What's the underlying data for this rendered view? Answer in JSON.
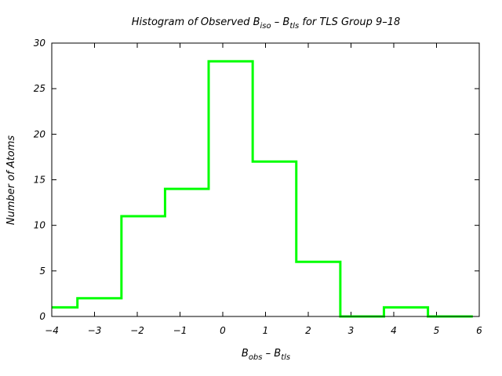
{
  "chart_data": {
    "type": "bar",
    "style": "step-histogram",
    "title": {
      "parts": [
        {
          "text": "Histogram of Observed B",
          "sub": false
        },
        {
          "text": "iso",
          "sub": true
        },
        {
          "text": " – B",
          "sub": false
        },
        {
          "text": "tls",
          "sub": true
        },
        {
          "text": " for TLS Group 9–18",
          "sub": false
        }
      ]
    },
    "xlabel": {
      "parts": [
        {
          "text": "B",
          "sub": false
        },
        {
          "text": "obs",
          "sub": true
        },
        {
          "text": " – B",
          "sub": false
        },
        {
          "text": "tls",
          "sub": true
        }
      ]
    },
    "ylabel": "Number of Atoms",
    "xlim": [
      -4,
      6
    ],
    "ylim": [
      0,
      30
    ],
    "xticks": [
      -4,
      -3,
      -2,
      -1,
      0,
      1,
      2,
      3,
      4,
      5,
      6
    ],
    "xtick_labels": [
      "−4",
      "−3",
      "−2",
      "−1",
      "0",
      "1",
      "2",
      "3",
      "4",
      "5",
      "6"
    ],
    "yticks": [
      0,
      5,
      10,
      15,
      20,
      25,
      30
    ],
    "ytick_labels": [
      "0",
      "5",
      "10",
      "15",
      "20",
      "25",
      "30"
    ],
    "bin_edges": [
      -4.0,
      -3.4,
      -2.37,
      -1.35,
      -0.33,
      0.7,
      1.72,
      2.75,
      3.77,
      4.8,
      5.85
    ],
    "counts": [
      1,
      2,
      11,
      14,
      28,
      17,
      6,
      0,
      1,
      0
    ],
    "line_color": "#00ff00",
    "grid": false
  }
}
